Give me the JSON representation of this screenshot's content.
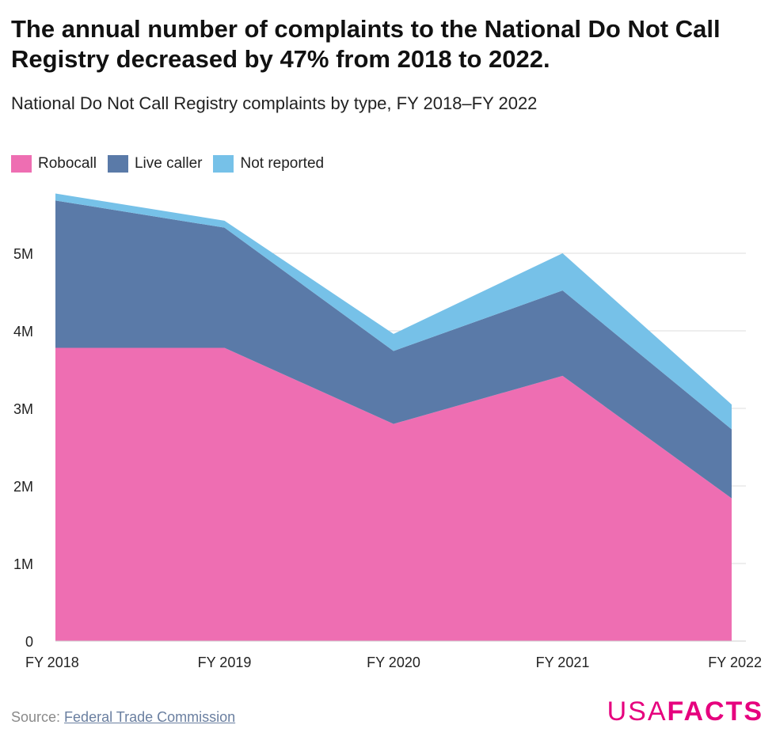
{
  "header": {
    "title": "The annual number of complaints to the National Do Not Call Registry decreased by 47% from 2018 to 2022.",
    "subtitle": "National Do Not Call Registry complaints by type, FY 2018–FY 2022"
  },
  "footer": {
    "source_label": "Source: ",
    "source_link": "Federal Trade Commission",
    "logo_usa": "USA",
    "logo_facts": "FACTS"
  },
  "chart_data": {
    "type": "area",
    "stacked": true,
    "categories": [
      "FY 2018",
      "FY 2019",
      "FY 2020",
      "FY 2021",
      "FY 2022"
    ],
    "series": [
      {
        "name": "Robocall",
        "color": "#ee6eb2",
        "values": [
          3.78,
          3.78,
          2.8,
          3.42,
          1.84
        ]
      },
      {
        "name": "Live caller",
        "color": "#5a7aa8",
        "values": [
          1.9,
          1.55,
          0.94,
          1.1,
          0.89
        ]
      },
      {
        "name": "Not reported",
        "color": "#76c1e8",
        "values": [
          0.09,
          0.09,
          0.22,
          0.48,
          0.32
        ]
      }
    ],
    "ylim": [
      0,
      6
    ],
    "yticks": [
      {
        "value": 0,
        "label": "0"
      },
      {
        "value": 1,
        "label": "1M"
      },
      {
        "value": 2,
        "label": "2M"
      },
      {
        "value": 3,
        "label": "3M"
      },
      {
        "value": 4,
        "label": "4M"
      },
      {
        "value": 5,
        "label": "5M"
      }
    ],
    "grid": true,
    "legend": "top-left"
  }
}
